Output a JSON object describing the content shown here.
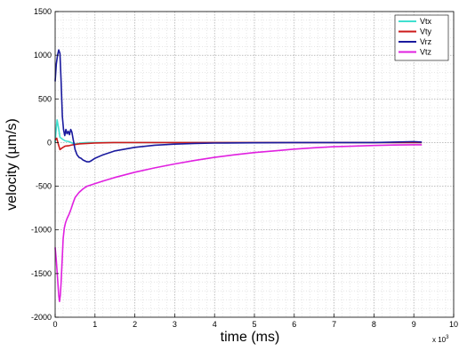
{
  "chart_data": {
    "type": "line",
    "xlabel": "time (ms)",
    "ylabel": "velocity (µm/s)",
    "x_exponent_label": "x 10",
    "x_exponent_power": "3",
    "xlim": [
      0,
      10
    ],
    "ylim": [
      -2000,
      1500
    ],
    "x_ticks": [
      "0",
      "1",
      "2",
      "3",
      "4",
      "5",
      "6",
      "7",
      "8",
      "9",
      "10"
    ],
    "y_ticks": [
      "1500",
      "1000",
      "500",
      "0",
      "-500",
      "-1000",
      "-1500",
      "-2000"
    ],
    "grid": true,
    "legend_position": "top-right",
    "series": [
      {
        "name": "Vtx",
        "color": "#40e0d0",
        "points": [
          [
            0,
            0
          ],
          [
            0.02,
            120
          ],
          [
            0.05,
            260
          ],
          [
            0.08,
            180
          ],
          [
            0.12,
            60
          ],
          [
            0.18,
            40
          ],
          [
            0.25,
            20
          ],
          [
            0.35,
            10
          ],
          [
            0.45,
            -10
          ],
          [
            0.55,
            -15
          ],
          [
            0.65,
            -5
          ],
          [
            0.8,
            0
          ],
          [
            1.5,
            0
          ],
          [
            3,
            0
          ],
          [
            5,
            0
          ],
          [
            7,
            0
          ],
          [
            9.2,
            0
          ]
        ]
      },
      {
        "name": "Vty",
        "color": "#cc1a1a",
        "points": [
          [
            0,
            30
          ],
          [
            0.04,
            50
          ],
          [
            0.08,
            -20
          ],
          [
            0.12,
            -80
          ],
          [
            0.18,
            -60
          ],
          [
            0.25,
            -40
          ],
          [
            0.35,
            -35
          ],
          [
            0.45,
            -25
          ],
          [
            0.6,
            -15
          ],
          [
            0.8,
            -10
          ],
          [
            1.0,
            -5
          ],
          [
            1.5,
            0
          ],
          [
            3,
            0
          ],
          [
            5,
            0
          ],
          [
            7,
            0
          ],
          [
            9.2,
            0
          ]
        ]
      },
      {
        "name": "Vrz",
        "color": "#1a1a9e",
        "points": [
          [
            0,
            700
          ],
          [
            0.03,
            900
          ],
          [
            0.06,
            1000
          ],
          [
            0.09,
            1060
          ],
          [
            0.12,
            1020
          ],
          [
            0.15,
            700
          ],
          [
            0.18,
            300
          ],
          [
            0.21,
            150
          ],
          [
            0.24,
            80
          ],
          [
            0.27,
            150
          ],
          [
            0.3,
            100
          ],
          [
            0.33,
            130
          ],
          [
            0.36,
            90
          ],
          [
            0.39,
            150
          ],
          [
            0.42,
            120
          ],
          [
            0.45,
            40
          ],
          [
            0.5,
            -80
          ],
          [
            0.55,
            -140
          ],
          [
            0.6,
            -170
          ],
          [
            0.65,
            -180
          ],
          [
            0.7,
            -200
          ],
          [
            0.75,
            -210
          ],
          [
            0.8,
            -220
          ],
          [
            0.85,
            -220
          ],
          [
            0.9,
            -210
          ],
          [
            1.0,
            -180
          ],
          [
            1.2,
            -140
          ],
          [
            1.5,
            -95
          ],
          [
            2.0,
            -55
          ],
          [
            2.5,
            -30
          ],
          [
            3.0,
            -18
          ],
          [
            3.5,
            -10
          ],
          [
            4.0,
            -6
          ],
          [
            5.0,
            -3
          ],
          [
            6.0,
            0
          ],
          [
            7.0,
            0
          ],
          [
            8.0,
            0
          ],
          [
            8.5,
            5
          ],
          [
            9.0,
            10
          ],
          [
            9.2,
            5
          ]
        ]
      },
      {
        "name": "Vtz",
        "color": "#e020e0",
        "points": [
          [
            0,
            -1200
          ],
          [
            0.03,
            -1350
          ],
          [
            0.06,
            -1550
          ],
          [
            0.09,
            -1750
          ],
          [
            0.11,
            -1820
          ],
          [
            0.13,
            -1750
          ],
          [
            0.15,
            -1600
          ],
          [
            0.18,
            -1300
          ],
          [
            0.2,
            -1100
          ],
          [
            0.23,
            -980
          ],
          [
            0.26,
            -920
          ],
          [
            0.3,
            -870
          ],
          [
            0.35,
            -820
          ],
          [
            0.4,
            -760
          ],
          [
            0.45,
            -690
          ],
          [
            0.5,
            -630
          ],
          [
            0.6,
            -570
          ],
          [
            0.7,
            -530
          ],
          [
            0.8,
            -500
          ],
          [
            1.0,
            -470
          ],
          [
            1.2,
            -440
          ],
          [
            1.5,
            -400
          ],
          [
            2.0,
            -340
          ],
          [
            2.5,
            -290
          ],
          [
            3.0,
            -245
          ],
          [
            3.5,
            -205
          ],
          [
            4.0,
            -170
          ],
          [
            4.5,
            -140
          ],
          [
            5.0,
            -115
          ],
          [
            5.5,
            -95
          ],
          [
            6.0,
            -75
          ],
          [
            6.5,
            -60
          ],
          [
            7.0,
            -48
          ],
          [
            7.5,
            -40
          ],
          [
            8.0,
            -33
          ],
          [
            8.5,
            -28
          ],
          [
            9.0,
            -25
          ],
          [
            9.2,
            -25
          ]
        ]
      }
    ]
  }
}
